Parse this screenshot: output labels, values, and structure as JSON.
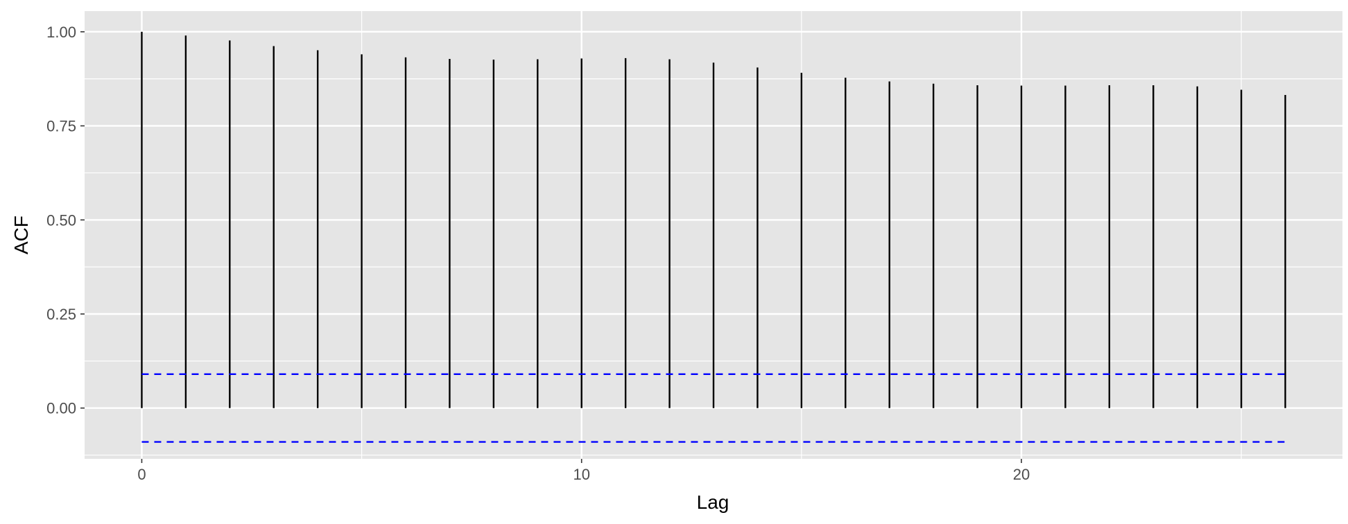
{
  "chart_data": {
    "type": "bar",
    "xlabel": "Lag",
    "ylabel": "ACF",
    "xlim": [
      -1.3,
      27.3
    ],
    "ylim": [
      -0.135,
      1.055
    ],
    "x_ticks": [
      0,
      10,
      20
    ],
    "x_tick_labels": [
      "0",
      "10",
      "20"
    ],
    "y_ticks": [
      0,
      0.25,
      0.5,
      0.75,
      1.0
    ],
    "y_tick_labels": [
      "0.00",
      "0.25",
      "0.50",
      "0.75",
      "1.00"
    ],
    "y_minor_ticks": [
      -0.125,
      0.125,
      0.375,
      0.625,
      0.875
    ],
    "x_minor_ticks": [
      5,
      15,
      25
    ],
    "grid": true,
    "lags": [
      0,
      1,
      2,
      3,
      4,
      5,
      6,
      7,
      8,
      9,
      10,
      11,
      12,
      13,
      14,
      15,
      16,
      17,
      18,
      19,
      20,
      21,
      22,
      23,
      24,
      25,
      26
    ],
    "acf": [
      1.0,
      0.99,
      0.977,
      0.962,
      0.951,
      0.94,
      0.932,
      0.928,
      0.926,
      0.927,
      0.929,
      0.93,
      0.927,
      0.918,
      0.905,
      0.891,
      0.878,
      0.868,
      0.862,
      0.858,
      0.857,
      0.857,
      0.858,
      0.858,
      0.855,
      0.846,
      0.832
    ],
    "confidence_bounds": [
      0.09,
      -0.09
    ],
    "colors": {
      "panel_background": "#e5e5e5",
      "grid": "#ffffff",
      "bars": "#000000",
      "bounds": "#0000ff"
    }
  }
}
